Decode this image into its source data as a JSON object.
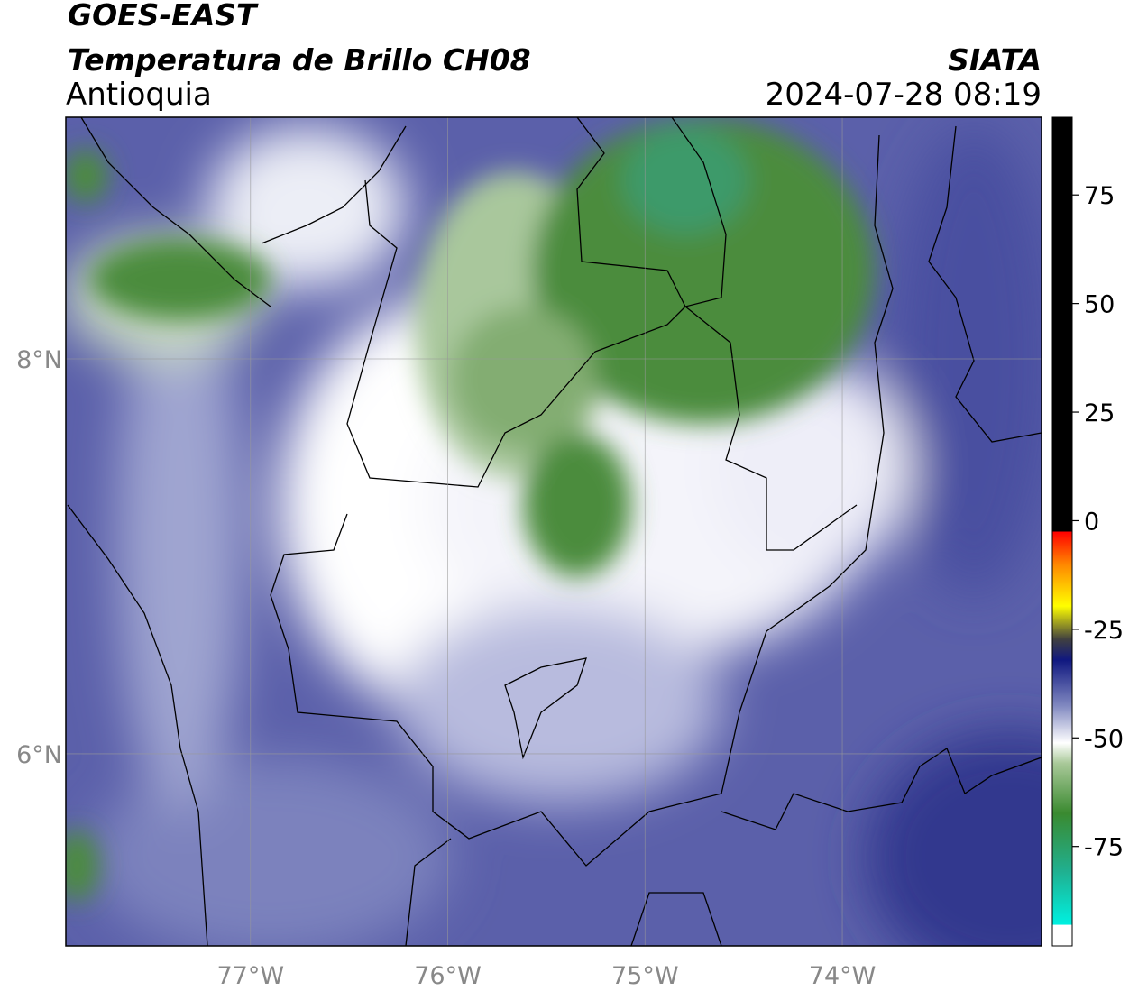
{
  "header": {
    "title": "GOES-EAST",
    "subtitle": "Temperatura de Brillo CH08",
    "region": "Antioquia",
    "source": "SIATA",
    "datetime": "2024-07-28 08:19"
  },
  "map": {
    "lonlim": [
      -77.936,
      -72.99
    ],
    "latlim": [
      5.027,
      9.224
    ],
    "lon_ticks": [
      {
        "value": -77,
        "label": "77°W"
      },
      {
        "value": -76,
        "label": "76°W"
      },
      {
        "value": -75,
        "label": "75°W"
      },
      {
        "value": -74,
        "label": "74°W"
      }
    ],
    "lat_ticks": [
      {
        "value": 8,
        "label": "8°N"
      },
      {
        "value": 6,
        "label": "6°N"
      }
    ]
  },
  "colorbar": {
    "lim": [
      -97.9,
      92.9
    ],
    "ticks": [
      75,
      50,
      25,
      0,
      -25,
      -50,
      -75
    ]
  }
}
